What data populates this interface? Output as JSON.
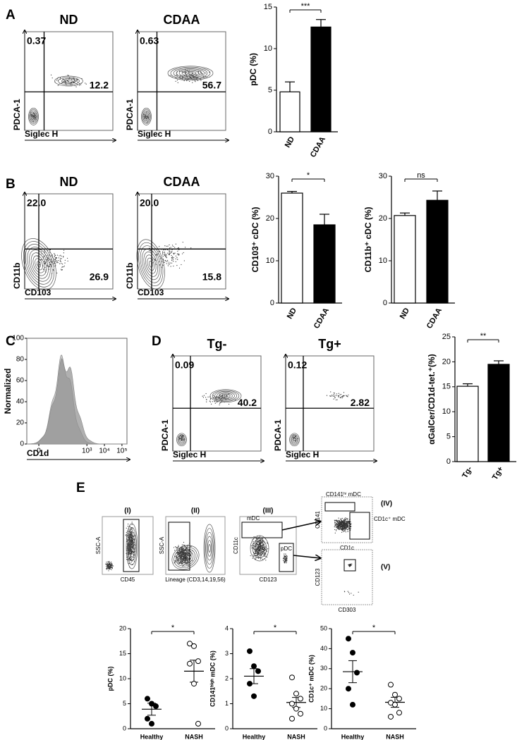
{
  "panel_labels": [
    "A",
    "B",
    "C",
    "D",
    "E"
  ],
  "flow_plots": [
    {
      "title": "ND",
      "y_label": "PDCA-1",
      "x_label": "Siglec H",
      "gates": [
        "0.37",
        "12.2"
      ]
    },
    {
      "title": "CDAA",
      "y_label": "PDCA-1",
      "x_label": "Siglec H",
      "gates": [
        "0.63",
        "56.7"
      ]
    },
    {
      "title": "ND",
      "y_label": "CD11b",
      "x_label": "CD103",
      "gates": [
        "22.0",
        "26.9"
      ]
    },
    {
      "title": "CDAA",
      "y_label": "CD11b",
      "x_label": "CD103",
      "gates": [
        "20.0",
        "15.8"
      ]
    },
    {
      "title": "Tg-",
      "y_label": "PDCA-1",
      "x_label": "Siglec H",
      "gates": [
        "0.09",
        "40.2"
      ]
    },
    {
      "title": "Tg+",
      "y_label": "PDCA-1",
      "x_label": "Siglec H",
      "gates": [
        "0.12",
        "2.82"
      ]
    }
  ],
  "histogram": {
    "y_label": "Normalized",
    "x_label": "CD1d",
    "yticks": [
      0,
      20,
      40,
      60,
      80,
      100
    ],
    "xticks": [
      0,
      {
        "value": 1000,
        "label": "10³"
      },
      {
        "value": 10000,
        "label": "10⁴"
      },
      {
        "value": 100000,
        "label": "10⁵"
      }
    ]
  },
  "gating": [
    {
      "title": "(I)",
      "x_label": "CD45",
      "y_label": "SSC-A"
    },
    {
      "title": "(II)",
      "x_label": "Lineage (CD3,14,19,56)",
      "y_label": "SSC-A"
    },
    {
      "title": "(III)",
      "x_label": "CD123",
      "y_label": "CD11c",
      "gates": [
        "mDC",
        "pDC"
      ]
    },
    {
      "title": "(IV)",
      "x_label": "CD1c",
      "y_label": "CD141",
      "gates": [
        "CD141ʰⁱ mDC",
        "CD1c⁺ mDC"
      ]
    },
    {
      "title": "(V)",
      "x_label": "CD303",
      "y_label": "CD123"
    }
  ],
  "chart_data": [
    {
      "type": "bar",
      "y_label": "pDC (%)",
      "categories": [
        "ND",
        "CDAA"
      ],
      "values": [
        4.8,
        12.6
      ],
      "errors": [
        1.2,
        0.9
      ],
      "colors": [
        "#ffffff",
        "#000000"
      ],
      "ylim": [
        0,
        15
      ],
      "yticks": [
        0,
        5,
        10,
        15
      ],
      "significance": "***"
    },
    {
      "type": "bar",
      "y_label": "CD103⁺ cDC (%)",
      "categories": [
        "ND",
        "CDAA"
      ],
      "values": [
        26,
        18.5
      ],
      "errors": [
        0.4,
        2.5
      ],
      "colors": [
        "#ffffff",
        "#000000"
      ],
      "ylim": [
        0,
        30
      ],
      "yticks": [
        0,
        10,
        20,
        30
      ],
      "significance": "*"
    },
    {
      "type": "bar",
      "y_label": "CD11b⁺ cDC (%)",
      "categories": [
        "ND",
        "CDAA"
      ],
      "values": [
        20.7,
        24.3
      ],
      "errors": [
        0.6,
        2.2
      ],
      "colors": [
        "#ffffff",
        "#000000"
      ],
      "ylim": [
        0,
        30
      ],
      "yticks": [
        0,
        10,
        20,
        30
      ],
      "significance": "ns"
    },
    {
      "type": "bar",
      "y_label": "αGalCer/CD1d-tet.⁺(%)",
      "categories": [
        "Tg-",
        "Tg+"
      ],
      "values": [
        15.1,
        19.5
      ],
      "errors": [
        0.5,
        0.7
      ],
      "colors": [
        "#ffffff",
        "#000000"
      ],
      "ylim": [
        0,
        25
      ],
      "yticks": [
        0,
        5,
        10,
        15,
        20,
        25
      ],
      "significance": "**"
    },
    {
      "type": "strip",
      "y_label": "pDC (%)",
      "categories": [
        "Healthy",
        "NASH"
      ],
      "points": [
        [
          6,
          5,
          4.5,
          2,
          1
        ],
        [
          17,
          16.5,
          13.5,
          13,
          9,
          1
        ]
      ],
      "means": [
        3.9,
        11.5
      ],
      "sems": [
        1.2,
        2.2
      ],
      "fills": [
        "#000000",
        "#ffffff"
      ],
      "ylim": [
        0,
        20
      ],
      "yticks": [
        0,
        5,
        10,
        15,
        20
      ],
      "significance": "*"
    },
    {
      "type": "strip",
      "y_label": "CD141ʰⁱᵍʰ mDC (%)",
      "categories": [
        "Healthy",
        "NASH"
      ],
      "points": [
        [
          3.1,
          2.5,
          2.3,
          1.8,
          1.3
        ],
        [
          2.05,
          1.4,
          1.2,
          1.0,
          0.8,
          0.6,
          0.4
        ]
      ],
      "means": [
        2.1,
        1.05
      ],
      "sems": [
        0.3,
        0.2
      ],
      "fills": [
        "#000000",
        "#ffffff"
      ],
      "ylim": [
        0,
        4
      ],
      "yticks": [
        0,
        1,
        2,
        3,
        4
      ],
      "significance": "*"
    },
    {
      "type": "strip",
      "y_label": "CD1c⁺ mDC (%)",
      "categories": [
        "Healthy",
        "NASH"
      ],
      "points": [
        [
          45,
          38,
          28,
          20,
          12
        ],
        [
          22,
          17,
          15,
          13,
          12,
          8,
          6
        ]
      ],
      "means": [
        28.5,
        13.2
      ],
      "sems": [
        5.5,
        2.5
      ],
      "fills": [
        "#000000",
        "#ffffff"
      ],
      "ylim": [
        0,
        50
      ],
      "yticks": [
        0,
        10,
        20,
        30,
        40,
        50
      ],
      "significance": "*"
    }
  ]
}
